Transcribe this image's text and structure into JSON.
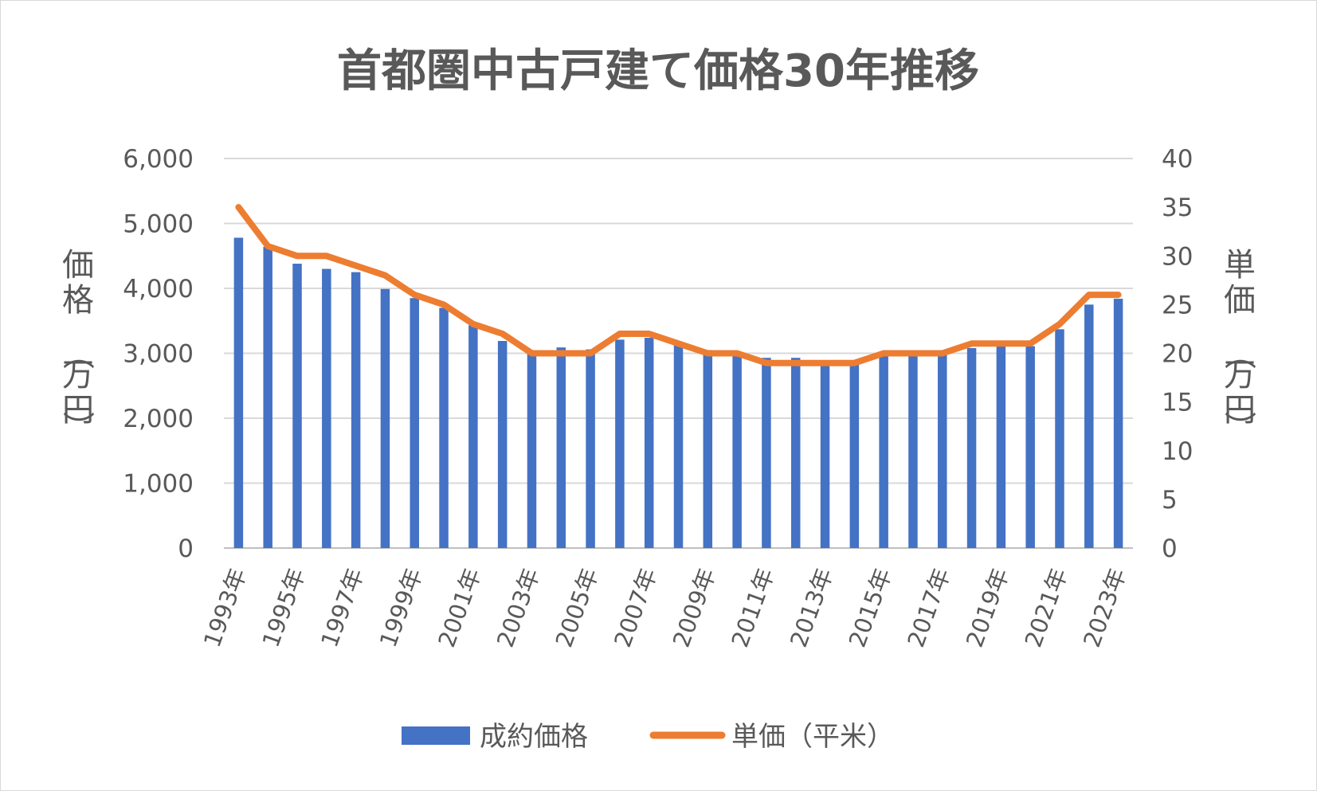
{
  "chart_data": {
    "type": "bar+line",
    "title": "首都圏中古戸建て価格30年推移",
    "y_left_label": [
      "価",
      "格",
      "（",
      "万",
      "円",
      "）"
    ],
    "y_right_label": [
      "単",
      "価",
      "（",
      "万",
      "円",
      "）"
    ],
    "y_left_ticks": [
      "6,000",
      "5,000",
      "4,000",
      "3,000",
      "2,000",
      "1,000",
      "0"
    ],
    "y_right_ticks": [
      "40",
      "35",
      "30",
      "25",
      "20",
      "15",
      "10",
      "5",
      "0"
    ],
    "ylim_left": [
      0,
      6000
    ],
    "ylim_right": [
      0,
      40
    ],
    "grid": "horizontal",
    "legend_position": "bottom",
    "x_tick_labels": [
      "1993年",
      "1995年",
      "1997年",
      "1999年",
      "2001年",
      "2003年",
      "2005年",
      "2007年",
      "2009年",
      "2011年",
      "2013年",
      "2015年",
      "2017年",
      "2019年",
      "2021年",
      "2023年"
    ],
    "categories": [
      "1993年",
      "1994年",
      "1995年",
      "1996年",
      "1997年",
      "1998年",
      "1999年",
      "2000年",
      "2001年",
      "2002年",
      "2003年",
      "2004年",
      "2005年",
      "2006年",
      "2007年",
      "2008年",
      "2009年",
      "2010年",
      "2011年",
      "2012年",
      "2013年",
      "2014年",
      "2015年",
      "2016年",
      "2017年",
      "2018年",
      "2019年",
      "2020年",
      "2021年",
      "2022年",
      "2023年"
    ],
    "series": [
      {
        "name": "成約価格",
        "axis": "left",
        "type": "bar",
        "color": "#4472C4",
        "values": [
          4780,
          4640,
          4380,
          4300,
          4250,
          3990,
          3850,
          3700,
          3430,
          3190,
          3020,
          3090,
          3060,
          3210,
          3240,
          3140,
          3050,
          2990,
          2930,
          2930,
          2860,
          2870,
          2960,
          2960,
          3000,
          3080,
          3110,
          3110,
          3370,
          3750,
          3840
        ]
      },
      {
        "name": "単価（平米）",
        "axis": "right",
        "type": "line",
        "color": "#ED7D31",
        "values": [
          35,
          31,
          30,
          30,
          29,
          28,
          26,
          25,
          23,
          22,
          20,
          20,
          20,
          22,
          22,
          21,
          20,
          20,
          19,
          19,
          19,
          19,
          20,
          20,
          20,
          21,
          21,
          21,
          23,
          26,
          26
        ]
      }
    ]
  }
}
